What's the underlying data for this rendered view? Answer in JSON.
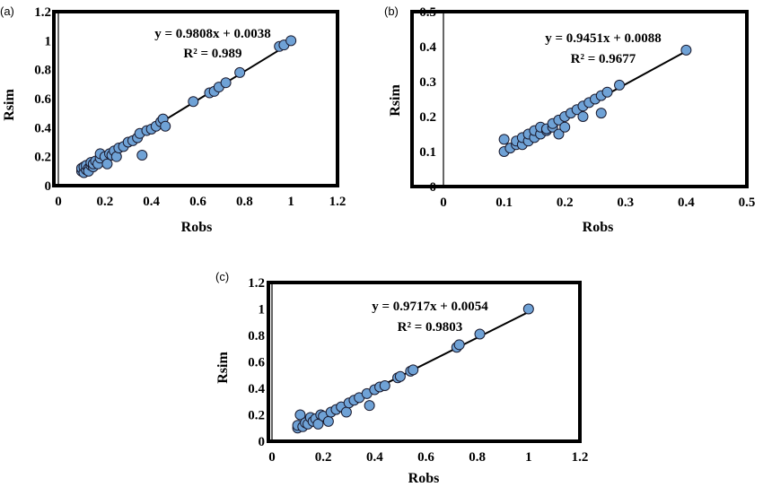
{
  "chart_data": [
    {
      "type": "scatter",
      "panel_label": "(a)",
      "xlabel": "Robs",
      "ylabel": "Rsim",
      "xlim": [
        0,
        1.2
      ],
      "ylim": [
        0,
        1.2
      ],
      "x_ticks": [
        "0",
        "0.2",
        "0.4",
        "0.6",
        "0.8",
        "1",
        "1.2"
      ],
      "y_ticks": [
        "0",
        "0.2",
        "0.4",
        "0.6",
        "0.8",
        "1",
        "1.2"
      ],
      "equation": "y = 0.9808x + 0.0038",
      "r2": "R² = 0.989",
      "trendline": {
        "slope": 0.9808,
        "intercept": 0.0038
      },
      "series": [
        {
          "points": [
            [
              0.1,
              0.1
            ],
            [
              0.1,
              0.12
            ],
            [
              0.11,
              0.09
            ],
            [
              0.11,
              0.13
            ],
            [
              0.12,
              0.11
            ],
            [
              0.12,
              0.14
            ],
            [
              0.13,
              0.12
            ],
            [
              0.13,
              0.1
            ],
            [
              0.14,
              0.14
            ],
            [
              0.14,
              0.16
            ],
            [
              0.15,
              0.13
            ],
            [
              0.15,
              0.15
            ],
            [
              0.16,
              0.17
            ],
            [
              0.17,
              0.15
            ],
            [
              0.18,
              0.19
            ],
            [
              0.18,
              0.22
            ],
            [
              0.2,
              0.2
            ],
            [
              0.21,
              0.15
            ],
            [
              0.22,
              0.22
            ],
            [
              0.23,
              0.21
            ],
            [
              0.24,
              0.24
            ],
            [
              0.25,
              0.2
            ],
            [
              0.26,
              0.26
            ],
            [
              0.28,
              0.27
            ],
            [
              0.3,
              0.3
            ],
            [
              0.32,
              0.31
            ],
            [
              0.34,
              0.33
            ],
            [
              0.35,
              0.36
            ],
            [
              0.36,
              0.21
            ],
            [
              0.38,
              0.38
            ],
            [
              0.4,
              0.39
            ],
            [
              0.42,
              0.41
            ],
            [
              0.44,
              0.44
            ],
            [
              0.45,
              0.46
            ],
            [
              0.46,
              0.41
            ],
            [
              0.58,
              0.58
            ],
            [
              0.65,
              0.64
            ],
            [
              0.67,
              0.65
            ],
            [
              0.69,
              0.68
            ],
            [
              0.72,
              0.71
            ],
            [
              0.78,
              0.78
            ],
            [
              0.95,
              0.96
            ],
            [
              0.97,
              0.97
            ],
            [
              1.0,
              1.0
            ]
          ]
        }
      ]
    },
    {
      "type": "scatter",
      "panel_label": "(b)",
      "xlabel": "Robs",
      "ylabel": "Rsim",
      "xlim": [
        0,
        0.5
      ],
      "ylim": [
        0,
        0.5
      ],
      "x_ticks": [
        "0",
        "0.1",
        "0.2",
        "0.3",
        "0.4",
        "0.5"
      ],
      "y_ticks": [
        "0",
        "0.1",
        "0.2",
        "0.3",
        "0.4",
        "0.5"
      ],
      "equation": "y = 0.9451x + 0.0088",
      "r2": "R² = 0.9677",
      "trendline": {
        "slope": 0.9451,
        "intercept": 0.0088
      },
      "series": [
        {
          "points": [
            [
              0.1,
              0.1
            ],
            [
              0.1,
              0.135
            ],
            [
              0.11,
              0.11
            ],
            [
              0.12,
              0.12
            ],
            [
              0.12,
              0.13
            ],
            [
              0.13,
              0.12
            ],
            [
              0.13,
              0.14
            ],
            [
              0.14,
              0.13
            ],
            [
              0.14,
              0.15
            ],
            [
              0.15,
              0.14
            ],
            [
              0.15,
              0.16
            ],
            [
              0.16,
              0.15
            ],
            [
              0.16,
              0.17
            ],
            [
              0.17,
              0.16
            ],
            [
              0.17,
              0.165
            ],
            [
              0.18,
              0.17
            ],
            [
              0.18,
              0.18
            ],
            [
              0.19,
              0.15
            ],
            [
              0.19,
              0.19
            ],
            [
              0.2,
              0.17
            ],
            [
              0.2,
              0.2
            ],
            [
              0.21,
              0.21
            ],
            [
              0.22,
              0.22
            ],
            [
              0.23,
              0.2
            ],
            [
              0.23,
              0.23
            ],
            [
              0.24,
              0.24
            ],
            [
              0.25,
              0.25
            ],
            [
              0.26,
              0.21
            ],
            [
              0.26,
              0.26
            ],
            [
              0.27,
              0.27
            ],
            [
              0.29,
              0.29
            ],
            [
              0.4,
              0.39
            ]
          ]
        }
      ]
    },
    {
      "type": "scatter",
      "panel_label": "(c)",
      "xlabel": "Robs",
      "ylabel": "Rsim",
      "xlim": [
        0,
        1.2
      ],
      "ylim": [
        0,
        1.2
      ],
      "x_ticks": [
        "0",
        "0.2",
        "0.4",
        "0.6",
        "0.8",
        "1",
        "1.2"
      ],
      "y_ticks": [
        "0",
        "0.2",
        "0.4",
        "0.6",
        "0.8",
        "1",
        "1.2"
      ],
      "equation": "y = 0.9717x + 0.0054",
      "r2": "R² = 0.9803",
      "trendline": {
        "slope": 0.9717,
        "intercept": 0.0054
      },
      "series": [
        {
          "points": [
            [
              0.1,
              0.1
            ],
            [
              0.1,
              0.12
            ],
            [
              0.11,
              0.2
            ],
            [
              0.12,
              0.11
            ],
            [
              0.13,
              0.14
            ],
            [
              0.14,
              0.13
            ],
            [
              0.15,
              0.18
            ],
            [
              0.16,
              0.15
            ],
            [
              0.17,
              0.17
            ],
            [
              0.18,
              0.13
            ],
            [
              0.19,
              0.2
            ],
            [
              0.2,
              0.19
            ],
            [
              0.22,
              0.15
            ],
            [
              0.23,
              0.22
            ],
            [
              0.25,
              0.24
            ],
            [
              0.27,
              0.26
            ],
            [
              0.29,
              0.22
            ],
            [
              0.3,
              0.29
            ],
            [
              0.32,
              0.31
            ],
            [
              0.34,
              0.33
            ],
            [
              0.37,
              0.36
            ],
            [
              0.38,
              0.27
            ],
            [
              0.4,
              0.39
            ],
            [
              0.42,
              0.41
            ],
            [
              0.44,
              0.42
            ],
            [
              0.49,
              0.48
            ],
            [
              0.5,
              0.49
            ],
            [
              0.54,
              0.53
            ],
            [
              0.55,
              0.54
            ],
            [
              0.72,
              0.71
            ],
            [
              0.73,
              0.73
            ],
            [
              0.81,
              0.81
            ],
            [
              1.0,
              1.0
            ]
          ]
        }
      ]
    }
  ]
}
